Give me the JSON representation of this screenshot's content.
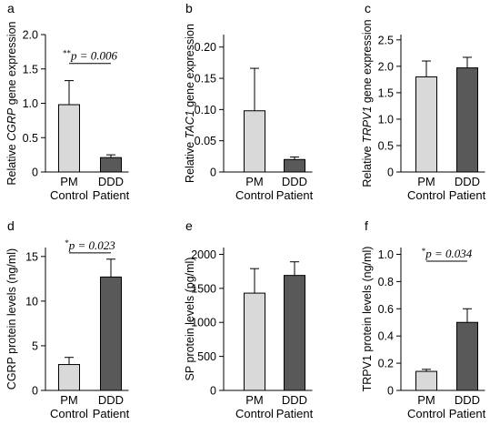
{
  "chart_data": [
    {
      "panel": "a",
      "type": "bar",
      "categories": [
        [
          "PM",
          "Control"
        ],
        [
          "DDD",
          "Patient"
        ]
      ],
      "values": [
        0.98,
        0.21
      ],
      "errors": [
        0.35,
        0.04
      ],
      "ylabel": {
        "pre": "Relative ",
        "italic": "CGRP",
        "post": " gene expression"
      },
      "ylim": [
        0,
        2.0
      ],
      "yticks": [
        0,
        0.5,
        1.0,
        1.5,
        2.0
      ],
      "ytick_labels": [
        "0",
        "0.5",
        "1.0",
        "1.5",
        "2.0"
      ],
      "colors": [
        "#d9d9d9",
        "#595959"
      ],
      "significance": {
        "stars": "**",
        "text": "p = 0.006",
        "y": 1.58
      }
    },
    {
      "panel": "b",
      "type": "bar",
      "categories": [
        [
          "PM",
          "Control"
        ],
        [
          "DDD",
          "Patient"
        ]
      ],
      "values": [
        0.098,
        0.02
      ],
      "errors": [
        0.068,
        0.004
      ],
      "ylabel": {
        "pre": "Relative ",
        "italic": "TAC1",
        "post": " gene expression"
      },
      "ylim": [
        0,
        0.22
      ],
      "yticks": [
        0,
        0.05,
        0.1,
        0.15,
        0.2
      ],
      "ytick_labels": [
        "0",
        "0.05",
        "0.10",
        "0.15",
        "0.20"
      ],
      "colors": [
        "#d9d9d9",
        "#595959"
      ]
    },
    {
      "panel": "c",
      "type": "bar",
      "categories": [
        [
          "PM",
          "Control"
        ],
        [
          "DDD",
          "Patient"
        ]
      ],
      "values": [
        1.8,
        1.97
      ],
      "errors": [
        0.3,
        0.2
      ],
      "ylabel": {
        "pre": "Relative ",
        "italic": "TRPV1",
        "post": " gene expression"
      },
      "ylim": [
        0,
        2.6
      ],
      "yticks": [
        0,
        0.5,
        1.0,
        1.5,
        2.0,
        2.5
      ],
      "ytick_labels": [
        "0",
        "0.5",
        "1.0",
        "1.5",
        "2.0",
        "2.5"
      ],
      "colors": [
        "#d9d9d9",
        "#595959"
      ]
    },
    {
      "panel": "d",
      "type": "bar",
      "categories": [
        [
          "PM",
          "Control"
        ],
        [
          "DDD",
          "Patient"
        ]
      ],
      "values": [
        2.9,
        12.7
      ],
      "errors": [
        0.8,
        2.0
      ],
      "ylabel": {
        "pre": "CGRP protein levels  (ng/ml)",
        "italic": "",
        "post": ""
      },
      "ylim": [
        0,
        16
      ],
      "yticks": [
        0,
        5,
        10,
        15
      ],
      "ytick_labels": [
        "0",
        "5",
        "10",
        "15"
      ],
      "colors": [
        "#d9d9d9",
        "#595959"
      ],
      "significance": {
        "stars": "*",
        "text": "p = 0.023",
        "y": 15.4
      }
    },
    {
      "panel": "e",
      "type": "bar",
      "categories": [
        [
          "PM",
          "Control"
        ],
        [
          "DDD",
          "Patient"
        ]
      ],
      "values": [
        1430,
        1690
      ],
      "errors": [
        360,
        200
      ],
      "ylabel": {
        "pre": "SP protein levels (pg/ml)",
        "italic": "",
        "post": ""
      },
      "ylim": [
        0,
        2100
      ],
      "yticks": [
        0,
        500,
        1000,
        1500,
        2000
      ],
      "ytick_labels": [
        "0",
        "500",
        "1000",
        "1500",
        "2000"
      ],
      "colors": [
        "#d9d9d9",
        "#595959"
      ]
    },
    {
      "panel": "f",
      "type": "bar",
      "categories": [
        [
          "PM",
          "Control"
        ],
        [
          "DDD",
          "Patient"
        ]
      ],
      "values": [
        0.14,
        0.5
      ],
      "errors": [
        0.015,
        0.1
      ],
      "ylabel": {
        "pre": "TRPV1 protein levels (ng/ml)",
        "italic": "",
        "post": ""
      },
      "ylim": [
        0,
        1.05
      ],
      "yticks": [
        0,
        0.2,
        0.4,
        0.6,
        0.8,
        1.0
      ],
      "ytick_labels": [
        "0",
        "0.2",
        "0.4",
        "0.6",
        "0.8",
        "1.0"
      ],
      "colors": [
        "#d9d9d9",
        "#595959"
      ],
      "significance": {
        "stars": "*",
        "text": "p = 0.034",
        "y": 0.95
      }
    }
  ]
}
